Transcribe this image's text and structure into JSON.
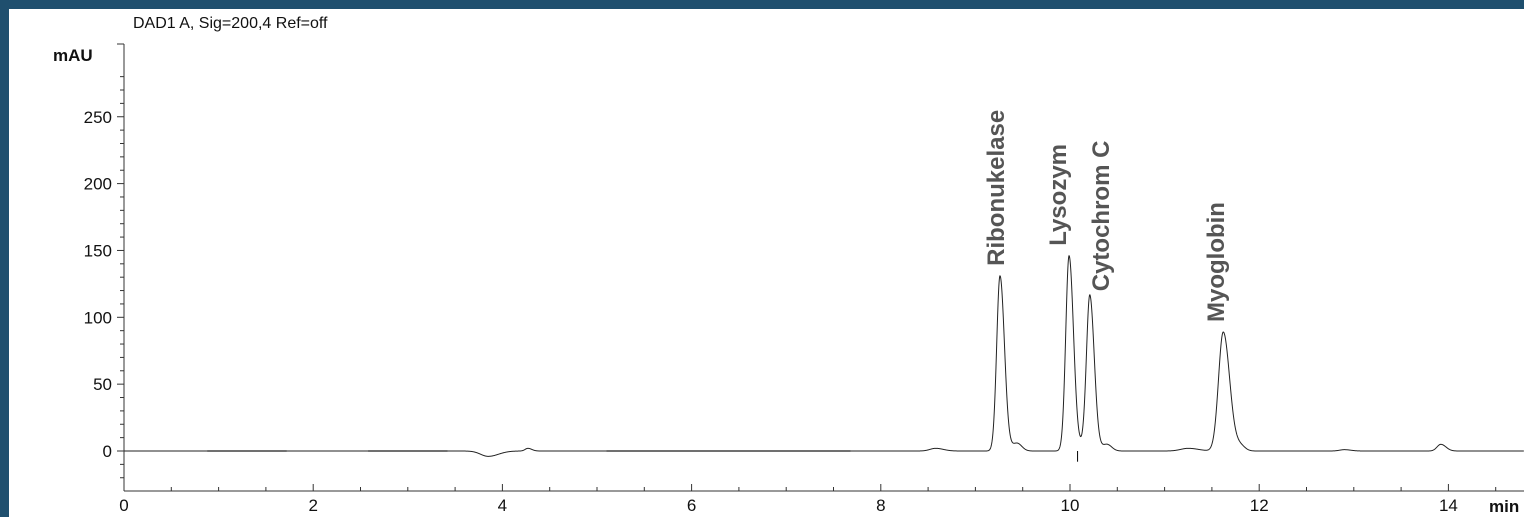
{
  "header": {
    "signal": "DAD1 A, Sig=200,4 Ref=off"
  },
  "chart_data": {
    "type": "line",
    "title": "DAD1 A, Sig=200,4 Ref=off",
    "ylabel": "mAU",
    "xlabel": "min",
    "xlim": [
      0,
      14.6
    ],
    "ylim": [
      -25,
      310
    ],
    "xticks": [
      0,
      2,
      4,
      6,
      8,
      10,
      12,
      14
    ],
    "xtick_labels": [
      "0",
      "2",
      "4",
      "6",
      "8",
      "10",
      "12",
      "14"
    ],
    "yticks": [
      0,
      50,
      100,
      150,
      200,
      250
    ],
    "ytick_labels": [
      "0",
      "50",
      "100",
      "150",
      "200",
      "250"
    ],
    "baseline": 0,
    "peaks": [
      {
        "name": "",
        "rt": 3.85,
        "height": -4,
        "width": 0.08
      },
      {
        "name": "",
        "rt": 4.27,
        "height": 2,
        "width": 0.03
      },
      {
        "name": "",
        "rt": 8.58,
        "height": 2,
        "width": 0.06
      },
      {
        "name": "Ribonukelase",
        "rt": 9.26,
        "height": 131,
        "width": 0.035
      },
      {
        "name": "Lysozym",
        "rt": 9.99,
        "height": 146,
        "width": 0.035
      },
      {
        "name": "Cytochrom C",
        "rt": 10.21,
        "height": 112,
        "width": 0.035
      },
      {
        "name": "",
        "rt": 11.25,
        "height": 2,
        "width": 0.08
      },
      {
        "name": "Myoglobin",
        "rt": 11.62,
        "height": 89,
        "width": 0.05
      },
      {
        "name": "",
        "rt": 12.9,
        "height": 1,
        "width": 0.05
      },
      {
        "name": "",
        "rt": 13.92,
        "height": 5,
        "width": 0.04
      }
    ],
    "grid": false,
    "legend": "none"
  }
}
